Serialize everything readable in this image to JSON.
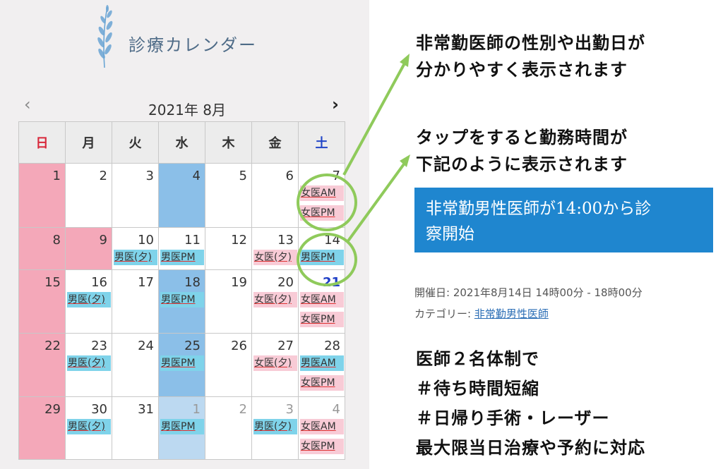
{
  "calendar": {
    "title": "診療カレンダー",
    "month_label": "2021年 8月",
    "prev_label": "‹",
    "next_label": "›",
    "weekdays": [
      "日",
      "月",
      "火",
      "水",
      "木",
      "金",
      "土"
    ],
    "weeks": [
      {
        "days": [
          {
            "num": "1",
            "bg": "pink",
            "events": []
          },
          {
            "num": "2",
            "events": []
          },
          {
            "num": "3",
            "events": []
          },
          {
            "num": "4",
            "bg": "blue",
            "events": []
          },
          {
            "num": "5",
            "events": []
          },
          {
            "num": "6",
            "events": []
          },
          {
            "num": "7",
            "events": [
              {
                "label": "女医AM",
                "kind": "female"
              },
              {
                "label": "女医PM",
                "kind": "female"
              }
            ]
          }
        ]
      },
      {
        "days": [
          {
            "num": "8",
            "bg": "pink",
            "events": []
          },
          {
            "num": "9",
            "bg": "pink",
            "events": []
          },
          {
            "num": "10",
            "events": [
              {
                "label": "男医(夕)",
                "kind": "male"
              }
            ]
          },
          {
            "num": "11",
            "events": [
              {
                "label": "男医PM",
                "kind": "male"
              }
            ]
          },
          {
            "num": "12",
            "events": []
          },
          {
            "num": "13",
            "events": [
              {
                "label": "女医(夕)",
                "kind": "female"
              }
            ]
          },
          {
            "num": "14",
            "events": [
              {
                "label": "男医PM",
                "kind": "male"
              }
            ]
          }
        ]
      },
      {
        "days": [
          {
            "num": "15",
            "bg": "pink",
            "events": []
          },
          {
            "num": "16",
            "events": [
              {
                "label": "男医(夕)",
                "kind": "male"
              }
            ]
          },
          {
            "num": "17",
            "events": []
          },
          {
            "num": "18",
            "bg": "blue",
            "events": [
              {
                "label": "男医PM",
                "kind": "male"
              }
            ]
          },
          {
            "num": "19",
            "events": []
          },
          {
            "num": "20",
            "events": [
              {
                "label": "女医(夕)",
                "kind": "female"
              }
            ]
          },
          {
            "num": "21",
            "today": true,
            "events": [
              {
                "label": "女医AM",
                "kind": "female"
              },
              {
                "label": "女医PM",
                "kind": "female"
              }
            ]
          }
        ]
      },
      {
        "days": [
          {
            "num": "22",
            "bg": "pink",
            "events": []
          },
          {
            "num": "23",
            "events": [
              {
                "label": "男医(夕)",
                "kind": "male"
              }
            ]
          },
          {
            "num": "24",
            "events": []
          },
          {
            "num": "25",
            "bg": "blue",
            "events": [
              {
                "label": "男医PM",
                "kind": "male"
              }
            ]
          },
          {
            "num": "26",
            "events": []
          },
          {
            "num": "27",
            "events": [
              {
                "label": "女医(夕)",
                "kind": "female"
              }
            ]
          },
          {
            "num": "28",
            "events": [
              {
                "label": "男医AM",
                "kind": "male"
              },
              {
                "label": "女医PM",
                "kind": "female"
              }
            ]
          }
        ]
      },
      {
        "days": [
          {
            "num": "29",
            "bg": "pink",
            "events": []
          },
          {
            "num": "30",
            "events": [
              {
                "label": "男医(夕)",
                "kind": "male"
              }
            ]
          },
          {
            "num": "31",
            "events": []
          },
          {
            "num": "1",
            "gray": true,
            "bg": "lblue",
            "events": [
              {
                "label": "男医PM",
                "kind": "male"
              }
            ]
          },
          {
            "num": "2",
            "gray": true,
            "events": []
          },
          {
            "num": "3",
            "gray": true,
            "events": [
              {
                "label": "男医(夕)",
                "kind": "male"
              }
            ]
          },
          {
            "num": "4",
            "gray": true,
            "events": [
              {
                "label": "女医AM",
                "kind": "female"
              },
              {
                "label": "女医PM",
                "kind": "female"
              }
            ]
          }
        ]
      }
    ]
  },
  "notes": {
    "note1_line1": "非常勤医師の性別や出勤日が",
    "note1_line2": "分かりやすく表示されます",
    "note2_line1": "タップをすると勤務時間が",
    "note2_line2": "下記のように表示されます",
    "banner_line1": "非常勤男性医師が14:00から診",
    "banner_line2": "察開始",
    "meta_date": "開催日: 2021年8月14日 14時00分 - 18時00分",
    "meta_category_label": "カテゴリー: ",
    "meta_category_link": "非常勤男性医師",
    "footer_lines": [
      "医師２名体制で",
      "＃待ち時間短縮",
      "＃日帰り手術・レーザー",
      "最大限当日治療や予約に対応"
    ]
  },
  "colors": {
    "sunday_bg": "#f4a8b9",
    "wednesday_bg": "#8bbfe8",
    "male_event": "#7fd3ea",
    "female_event": "#f8cbd6",
    "annotation_green": "#8fca5b",
    "banner_blue": "#1f86cf"
  },
  "icons": {
    "logo": "leaf-branch-icon"
  }
}
